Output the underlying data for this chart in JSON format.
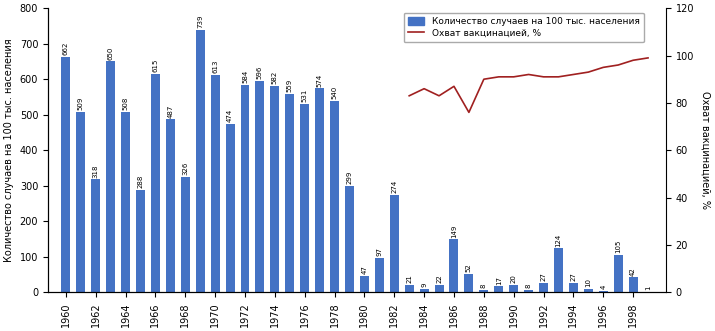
{
  "years": [
    1960,
    1961,
    1962,
    1963,
    1964,
    1965,
    1966,
    1967,
    1968,
    1969,
    1970,
    1971,
    1972,
    1973,
    1974,
    1975,
    1976,
    1977,
    1978,
    1979,
    1980,
    1981,
    1982,
    1983,
    1984,
    1985,
    1986,
    1987,
    1988,
    1989,
    1990,
    1991,
    1992,
    1993,
    1994,
    1995,
    1996,
    1997,
    1998,
    1999
  ],
  "cases": [
    662,
    509,
    318,
    650,
    508,
    288,
    615,
    487,
    326,
    739,
    613,
    474,
    584,
    596,
    582,
    559,
    531,
    574,
    540,
    299,
    47,
    97,
    274,
    21,
    9,
    22,
    149,
    52,
    8,
    17,
    20,
    8,
    27,
    124,
    27,
    10,
    4,
    105,
    42,
    1
  ],
  "vacc_years": [
    1983,
    1984,
    1985,
    1986,
    1987,
    1988,
    1989,
    1990,
    1991,
    1992,
    1993,
    1994,
    1995,
    1996,
    1997,
    1998,
    1999
  ],
  "vacc_coverage": [
    83,
    86,
    83,
    87,
    76,
    90,
    91,
    91,
    92,
    91,
    91,
    92,
    93,
    95,
    96,
    98,
    99
  ],
  "bar_color": "#4472C4",
  "line_color": "#A02020",
  "ylabel_left": "Количество случаев на 100 тыс. населения",
  "ylabel_right": "Охват вакцинацией, %",
  "ylim_left": [
    0,
    800
  ],
  "ylim_right": [
    0,
    120
  ],
  "yticks_left": [
    0,
    100,
    200,
    300,
    400,
    500,
    600,
    700,
    800
  ],
  "yticks_right": [
    0,
    20,
    40,
    60,
    80,
    100,
    120
  ],
  "legend_bar": "Количество случаев на 100 тыс. населения",
  "legend_line": "Охват вакцинацией, %",
  "xtick_years": [
    1960,
    1962,
    1964,
    1966,
    1968,
    1970,
    1972,
    1974,
    1976,
    1978,
    1980,
    1982,
    1984,
    1986,
    1988,
    1990,
    1992,
    1994,
    1996,
    1998
  ],
  "figsize": [
    7.15,
    3.31
  ],
  "dpi": 100
}
